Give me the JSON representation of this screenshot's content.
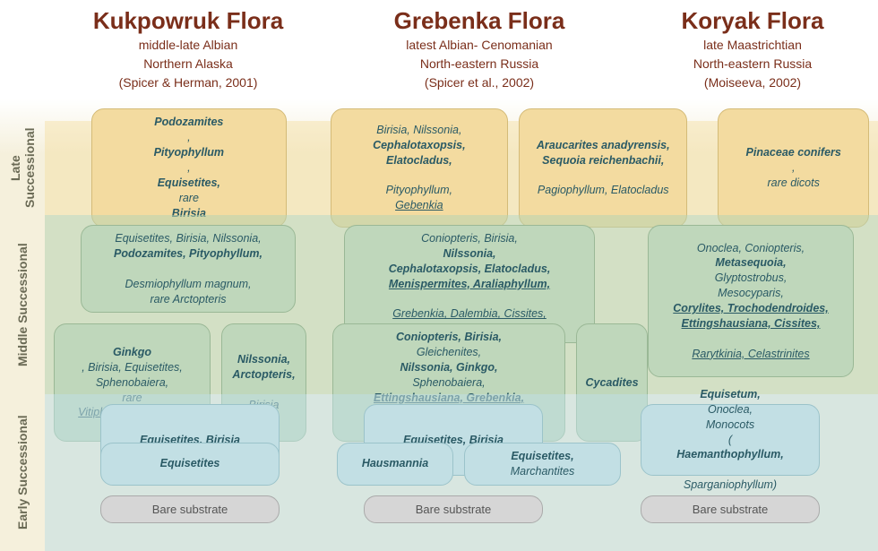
{
  "headers": [
    {
      "title": "Kukpowruk Flora",
      "age": "middle-late Albian",
      "locality": "Northern Alaska",
      "citation": "(Spicer & Herman, 2001)"
    },
    {
      "title": "Grebenka Flora",
      "age": "latest Albian- Cenomanian",
      "locality": "North-eastern Russia",
      "citation": "(Spicer et al., 2002)"
    },
    {
      "title": "Koryak Flora",
      "age": "late Maastrichtian",
      "locality": "North-eastern Russia",
      "citation": "(Moiseeva, 2002)"
    }
  ],
  "stages": {
    "late": "Late Successional",
    "middle": "Middle Successional",
    "early": "Early Successional"
  },
  "boxes": {
    "late_kuk": "<span class='b'>Podozamites</span>, <span class='b'>Pityophyllum</span>,<br><span class='b'>Equisetites,</span> rare <span class='b'>Birisia</span>",
    "late_greb_a": "Birisia, Nilssonia,<br><span class='b'>Cephalotaxopsis, Elatocladus,</span><br>Pityophyllum, <span class='u'>Gebenkia</span>",
    "late_greb_b": "<span class='b'>Araucarites anadyrensis,<br>Sequoia reichenbachii,</span><br>Pagiophyllum, Elatocladus",
    "late_kory": "<span class='b'>Pinaceae conifers</span>,<br>rare dicots",
    "mid_kuk_top": "Equisetites, Birisia, Nilssonia,<br><span class='b'>Podozamites, Pityophyllum,</span><br>Desmiophyllum magnum,<br>rare Arctopteris",
    "mid_kuk_a": "<span class='b'>Ginkgo</span>, Birisia, Equisetites,<br>Sphenobaiera,<br>rare <span class='u'>Vitiphyllum multifidum</span>",
    "mid_kuk_b": "<span class='b'>Nilssonia,<br>Arctopteris,</span><br>Birisia",
    "mid_greb_top": "Coniopteris, Birisia, <span class='b'>Nilssonia,<br>Cephalotaxopsis, Elatocladus,<br><span class='u'>Menispermites, Araliaphyllum,</span></span><br><span class='u'>Grebenkia, Dalembia, Cissites,<br>Schefflearaephyllum, Myrtophyllum</span>",
    "mid_greb_a": "<span class='b'>Coniopteris, Birisia,</span> Gleichenites,<br><span class='b'>Nilssonia, Ginkgo,</span> Sphenobaiera,<br><span class='b u'>Ettingshausiana, Grebenkia,</span><br>Cissites, Scheffleraephyllum",
    "mid_greb_b": "<span class='b'>Cycadites</span>",
    "mid_kory": "Onoclea, Coniopteris,<br><span class='b'>Metasequoia,</span> Glyptostrobus,<br>Mesocyparis,<br><span class='b u'>Corylites, Trochodendroides,<br>Ettingshausiana, Cissites,</span><br><span class='u'>Rarytkinia, Celastrinites</span>",
    "early_kuk_a": "<span class='b'>Equisetites, Birisia</span>",
    "early_kuk_b": "<span class='b'>Equisetites</span>",
    "early_greb_a": "<span class='b'>Equisetites, Birisia</span>",
    "early_greb_b1": "<span class='b'>Hausmannia</span>",
    "early_greb_b2": "<span class='b'>Equisetites,</span> Marchantites",
    "early_kory": "<span class='b'>Equisetum,</span> Onoclea,<br>Monocots<br>(<span class='b'>Haemanthophyllum,</span><br>Sparganiophyllum)",
    "bare": "Bare substrate"
  },
  "layout": {
    "header_widths": [
      320,
      330,
      280
    ],
    "stage_label_heights": {
      "spacer": 135,
      "late": 105,
      "middle": 200,
      "early": 175
    },
    "band_heights": {
      "late": 105,
      "middle": 200,
      "early": 175
    },
    "colors": {
      "title": "#7a2e1a",
      "text": "#2a5a65",
      "late_bg": "#f3dba0",
      "mid_bg": "#bfd7bb",
      "early_bg": "#c2dfe4",
      "bare_bg": "#d6d6d6"
    }
  }
}
